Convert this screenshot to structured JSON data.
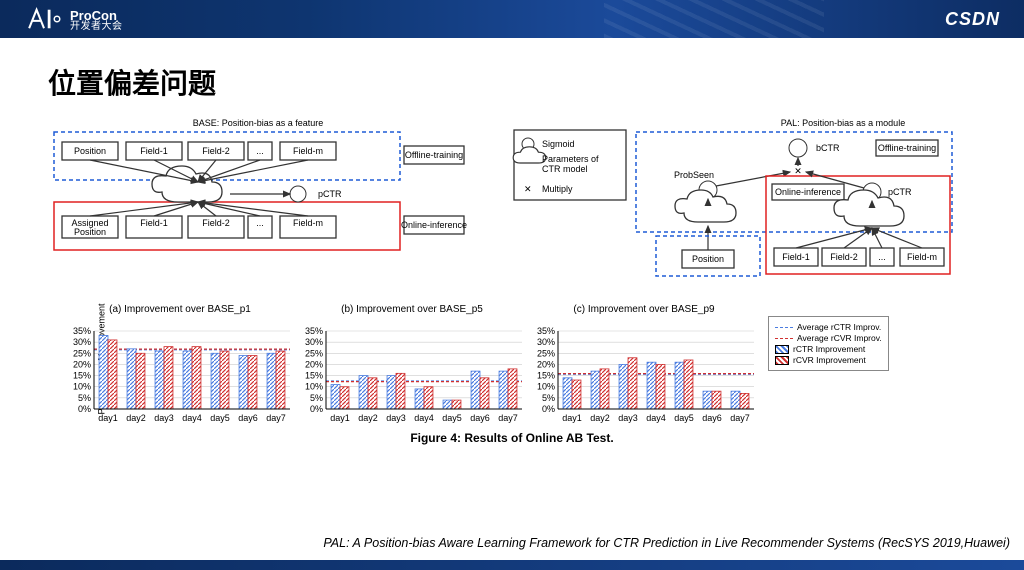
{
  "header": {
    "brand_top": "ProCon",
    "brand_bot": "开发者大会",
    "right": "CSDN"
  },
  "title": "位置偏差问题",
  "diag_left": {
    "title": "BASE: Position-bias as a feature",
    "offline": "Offline-training",
    "online": "Online-inference",
    "top_boxes": [
      "Position",
      "Field-1",
      "Field-2",
      "...",
      "Field-m"
    ],
    "bot_boxes": [
      "Assigned\nPosition",
      "Field-1",
      "Field-2",
      "...",
      "Field-m"
    ],
    "out": "pCTR"
  },
  "diag_right": {
    "title": "PAL: Position-bias as a module",
    "offline": "Offline-training",
    "online": "Online-inference",
    "legend": [
      "Sigmoid",
      "Parameters of\nCTR model",
      "Multiply"
    ],
    "probseen": "ProbSeen",
    "position": "Position",
    "bctr": "bCTR",
    "pctr": "pCTR",
    "fields": [
      "Field-1",
      "Field-2",
      "...",
      "Field-m"
    ]
  },
  "charts": {
    "ylabel": "Percentage of Improvement",
    "ylim": [
      0,
      35
    ],
    "ystep": 5,
    "days": [
      "day1",
      "day2",
      "day3",
      "day4",
      "day5",
      "day6",
      "day7"
    ],
    "panels": [
      {
        "title": "(a) Improvement over BASE_p1",
        "ctr": [
          33,
          27,
          26,
          26,
          25,
          24,
          25
        ],
        "cvr": [
          31,
          25,
          28,
          28,
          26,
          24,
          26
        ]
      },
      {
        "title": "(b) Improvement over BASE_p5",
        "ctr": [
          11,
          15,
          15,
          9,
          4,
          17,
          17
        ],
        "cvr": [
          10,
          14,
          16,
          10,
          4,
          14,
          18
        ]
      },
      {
        "title": "(c) Improvement over BASE_p9",
        "ctr": [
          14,
          17,
          20,
          21,
          21,
          8,
          8
        ],
        "cvr": [
          13,
          18,
          23,
          20,
          22,
          8,
          7
        ]
      }
    ],
    "caption": "Figure 4: Results of Online AB Test.",
    "legend": [
      "Average rCTR Improv.",
      "Average rCVR Improv.",
      "rCTR Improvement",
      "rCVR Improvement"
    ],
    "colors": {
      "ctr": "#4a7ce0",
      "cvr": "#d03030",
      "grid": "#cccccc"
    }
  },
  "citation": "PAL: A Position-bias Aware Learning Framework for CTR Prediction in Live Recommender Systems (RecSYS 2019,Huawei)"
}
